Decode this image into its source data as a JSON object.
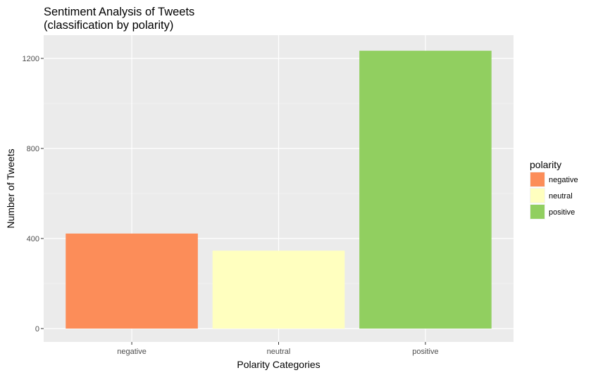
{
  "chart_data": {
    "type": "bar",
    "title_line1": "Sentiment Analysis of Tweets",
    "title_line2": "(classification by polarity)",
    "xlabel": "Polarity Categories",
    "ylabel": "Number of Tweets",
    "categories": [
      "negative",
      "neutral",
      "positive"
    ],
    "values": [
      422,
      346,
      1234
    ],
    "colors": [
      "#FC8D59",
      "#FFFFBF",
      "#91CF60"
    ],
    "ylim": [
      0,
      1300
    ],
    "yticks": [
      0,
      400,
      800,
      1200
    ],
    "grid": true,
    "legend": {
      "title": "polarity",
      "placement": "right",
      "labels": [
        "negative",
        "neutral",
        "positive"
      ]
    }
  }
}
